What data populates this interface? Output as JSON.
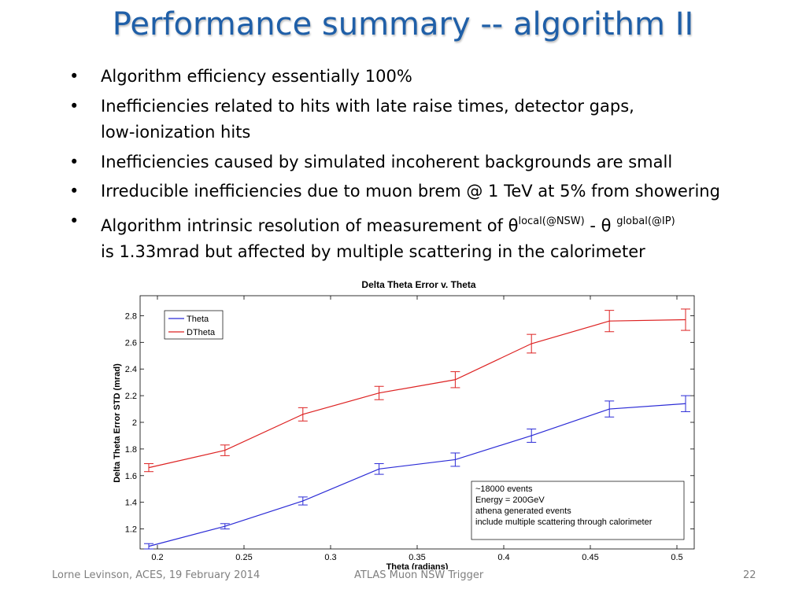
{
  "slide": {
    "title": "Performance summary -- algorithm II",
    "bullets": [
      "Algorithm efficiency essentially 100%",
      "Inefficiencies related to hits with late raise times, detector gaps,",
      "low-ionization hits",
      "Inefficiencies caused by simulated incoherent backgrounds are small",
      "Irreducible inefficiencies due to muon brem @ 1 TeV at 5% from showering",
      "Algorithm intrinsic resolution of measurement of θ",
      "local(@NSW)",
      " - θ ",
      "global(@IP)",
      "is 1.33mrad but affected by multiple scattering in the calorimeter"
    ],
    "bullet_symbol": "•",
    "footer_left": "Lorne Levinson, ACES, 19 February 2014",
    "footer_center": "ATLAS Muon NSW Trigger",
    "footer_right": "22"
  },
  "chart_data": {
    "type": "line",
    "title": "Delta Theta Error v. Theta",
    "xlabel": "Theta (radians)",
    "ylabel": "Delta Theta Error STD (mrad)",
    "xlim": [
      0.19,
      0.51
    ],
    "ylim": [
      1.05,
      2.95
    ],
    "xticks": [
      0.2,
      0.25,
      0.3,
      0.35,
      0.4,
      0.45,
      0.5
    ],
    "xtick_labels": [
      "0.2",
      "0.25",
      "0.3",
      "0.35",
      "0.4",
      "0.45",
      "0.5"
    ],
    "yticks": [
      1.2,
      1.4,
      1.6,
      1.8,
      2,
      2.2,
      2.4,
      2.6,
      2.8
    ],
    "ytick_labels": [
      "1.2",
      "1.4",
      "1.6",
      "1.8",
      "2",
      "2.2",
      "2.4",
      "2.6",
      "2.8"
    ],
    "grid": false,
    "legend_position": "top-left",
    "x": [
      0.195,
      0.239,
      0.284,
      0.328,
      0.372,
      0.416,
      0.461,
      0.505
    ],
    "series": [
      {
        "name": "Theta",
        "color": "#2b2bd6",
        "values": [
          1.07,
          1.22,
          1.41,
          1.65,
          1.72,
          1.9,
          2.1,
          2.14
        ],
        "errors": [
          0.02,
          0.02,
          0.03,
          0.04,
          0.05,
          0.05,
          0.06,
          0.06
        ]
      },
      {
        "name": "DTheta",
        "color": "#dd2222",
        "values": [
          1.66,
          1.79,
          2.06,
          2.22,
          2.32,
          2.59,
          2.76,
          2.77
        ],
        "errors": [
          0.03,
          0.04,
          0.05,
          0.05,
          0.06,
          0.07,
          0.08,
          0.08
        ]
      }
    ],
    "annotation": [
      "~18000 events",
      "Energy = 200GeV",
      "athena generated events",
      "include multiple scattering through calorimeter"
    ]
  }
}
